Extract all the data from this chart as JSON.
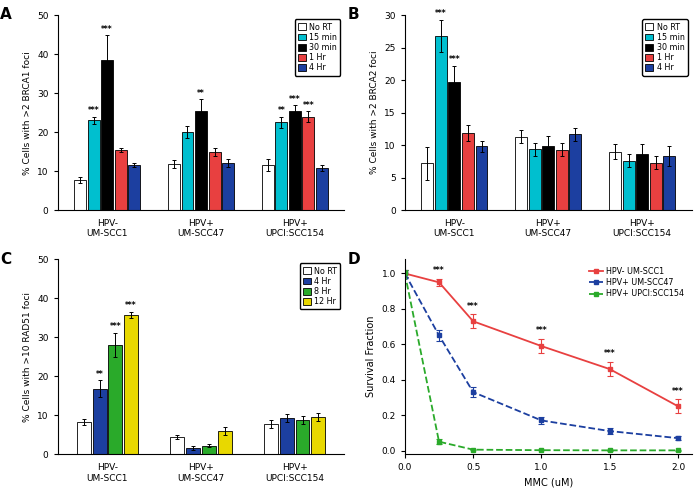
{
  "panel_A": {
    "title": "A",
    "ylabel": "% Cells with >2 BRCA1 foci",
    "ylim": [
      0,
      50
    ],
    "yticks": [
      0,
      10,
      20,
      30,
      40,
      50
    ],
    "groups": [
      "HPV-\nUM-SCC1",
      "HPV+\nUM-SCC47",
      "HPV+\nUPCI:SCC154"
    ],
    "conditions": [
      "No RT",
      "15 min",
      "30 min",
      "1 Hr",
      "4 Hr"
    ],
    "colors": [
      "white",
      "#00BFCF",
      "black",
      "#E84040",
      "#1C3FA0"
    ],
    "values": [
      [
        7.8,
        23.0,
        38.5,
        15.5,
        11.5
      ],
      [
        11.8,
        20.0,
        25.5,
        15.0,
        12.0
      ],
      [
        11.5,
        22.5,
        25.5,
        24.0,
        10.8
      ]
    ],
    "errors": [
      [
        0.8,
        1.0,
        6.5,
        0.5,
        0.5
      ],
      [
        1.0,
        1.5,
        3.0,
        1.0,
        1.0
      ],
      [
        1.5,
        1.5,
        1.5,
        1.5,
        0.8
      ]
    ],
    "sig": [
      [
        "",
        "***",
        "***",
        "",
        ""
      ],
      [
        "",
        "",
        "**",
        "",
        ""
      ],
      [
        "",
        "**",
        "***",
        "***",
        ""
      ]
    ]
  },
  "panel_B": {
    "title": "B",
    "ylabel": "% Cells with >2 BRCA2 foci",
    "ylim": [
      0,
      30
    ],
    "yticks": [
      0,
      5,
      10,
      15,
      20,
      25,
      30
    ],
    "groups": [
      "HPV-\nUM-SCC1",
      "HPV+\nUM-SCC47",
      "HPV+\nUPCI:SCC154"
    ],
    "conditions": [
      "No RT",
      "15 min",
      "30 min",
      "1 Hr",
      "4 Hr"
    ],
    "colors": [
      "white",
      "#00BFCF",
      "black",
      "#E84040",
      "#1C3FA0"
    ],
    "values": [
      [
        7.2,
        26.8,
        19.7,
        11.9,
        9.8
      ],
      [
        11.3,
        9.4,
        9.9,
        9.3,
        11.7
      ],
      [
        9.0,
        7.6,
        8.7,
        7.3,
        8.3
      ]
    ],
    "errors": [
      [
        2.5,
        2.5,
        2.5,
        1.2,
        0.8
      ],
      [
        1.0,
        1.0,
        1.5,
        1.0,
        1.0
      ],
      [
        1.2,
        1.0,
        1.5,
        1.0,
        1.5
      ]
    ],
    "sig": [
      [
        "",
        "***",
        "***",
        "",
        ""
      ],
      [
        "",
        "",
        "",
        "",
        ""
      ],
      [
        "",
        "",
        "",
        "",
        ""
      ]
    ]
  },
  "panel_C": {
    "title": "C",
    "ylabel": "% Cells with >10 RAD51 foci",
    "ylim": [
      0,
      50
    ],
    "yticks": [
      0,
      10,
      20,
      30,
      40,
      50
    ],
    "groups": [
      "HPV-\nUM-SCC1",
      "HPV+\nUM-SCC47",
      "HPV+\nUPCI:SCC154"
    ],
    "conditions": [
      "No RT",
      "4 Hr",
      "8 Hr",
      "12 Hr"
    ],
    "colors": [
      "white",
      "#1C3FA0",
      "#2AAA2A",
      "#E8D800"
    ],
    "values": [
      [
        8.2,
        16.8,
        28.0,
        35.8
      ],
      [
        4.5,
        1.5,
        2.2,
        6.0
      ],
      [
        7.8,
        9.3,
        8.8,
        9.5
      ]
    ],
    "errors": [
      [
        0.8,
        2.2,
        3.2,
        0.8
      ],
      [
        0.5,
        0.5,
        0.5,
        1.0
      ],
      [
        1.0,
        1.0,
        1.0,
        1.0
      ]
    ],
    "sig": [
      [
        "",
        "**",
        "***",
        "***"
      ],
      [
        "",
        "",
        "",
        ""
      ],
      [
        "",
        "",
        "",
        ""
      ]
    ]
  },
  "panel_D": {
    "title": "D",
    "xlabel": "MMC (uM)",
    "ylabel": "Survival Fraction",
    "xlim": [
      0,
      2.1
    ],
    "ylim": [
      -0.02,
      1.08
    ],
    "yticks": [
      0.0,
      0.2,
      0.4,
      0.6,
      0.8,
      1.0
    ],
    "xticks": [
      0.0,
      0.5,
      1.0,
      1.5,
      2.0
    ],
    "series": [
      {
        "label": "HPV- UM-SCC1",
        "color": "#E84040",
        "linestyle": "-",
        "x": [
          0.0,
          0.25,
          0.5,
          1.0,
          1.5,
          2.0
        ],
        "y": [
          1.0,
          0.95,
          0.73,
          0.59,
          0.46,
          0.25
        ],
        "yerr": [
          0.02,
          0.02,
          0.04,
          0.04,
          0.04,
          0.04
        ],
        "sig_x": [
          0.25,
          0.5,
          1.0,
          1.5,
          2.0
        ],
        "sig": [
          "***",
          "***",
          "***",
          "***",
          "***"
        ]
      },
      {
        "label": "HPV+ UM-SCC47",
        "color": "#1C3FA0",
        "linestyle": "--",
        "x": [
          0.0,
          0.25,
          0.5,
          1.0,
          1.5,
          2.0
        ],
        "y": [
          1.0,
          0.65,
          0.33,
          0.17,
          0.11,
          0.07
        ],
        "yerr": [
          0.02,
          0.03,
          0.03,
          0.02,
          0.015,
          0.01
        ],
        "sig_x": [],
        "sig": []
      },
      {
        "label": "HPV+ UPCI:SCC154",
        "color": "#2AAA2A",
        "linestyle": "--",
        "x": [
          0.0,
          0.25,
          0.5,
          1.0,
          1.5,
          2.0
        ],
        "y": [
          1.0,
          0.05,
          0.005,
          0.002,
          0.001,
          0.001
        ],
        "yerr": [
          0.02,
          0.015,
          0.003,
          0.001,
          0.001,
          0.001
        ],
        "sig_x": [],
        "sig": []
      }
    ]
  }
}
